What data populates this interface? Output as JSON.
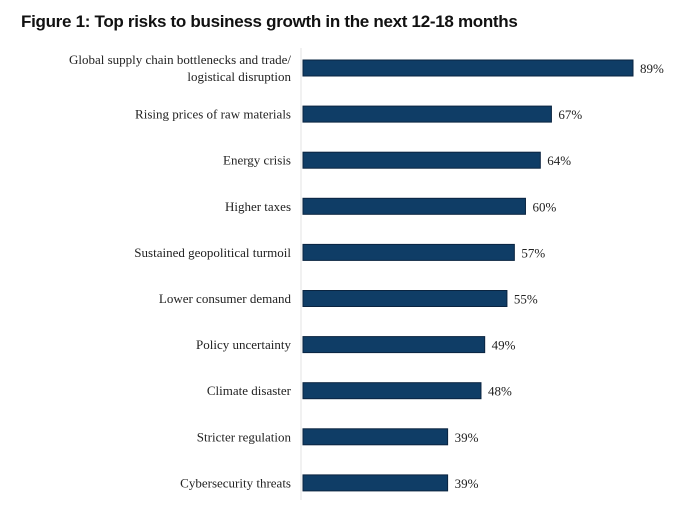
{
  "chart_data": {
    "type": "bar",
    "orientation": "horizontal",
    "title": "Figure 1: Top risks to business growth in the next 12-18 months",
    "categories": [
      [
        "Global supply chain bottlenecks and trade/",
        "logistical disruption"
      ],
      [
        "Rising prices of raw materials"
      ],
      [
        "Energy crisis"
      ],
      [
        "Higher taxes"
      ],
      [
        "Sustained geopolitical turmoil"
      ],
      [
        "Lower consumer demand"
      ],
      [
        "Policy uncertainty"
      ],
      [
        "Climate disaster"
      ],
      [
        "Stricter regulation"
      ],
      [
        "Cybersecurity threats"
      ]
    ],
    "values": [
      89,
      67,
      64,
      60,
      57,
      55,
      49,
      48,
      39,
      39
    ],
    "value_labels": [
      "89%",
      "67%",
      "64%",
      "60%",
      "57%",
      "55%",
      "49%",
      "48%",
      "39%",
      "39%"
    ],
    "xlabel": "",
    "ylabel": "",
    "xlim": [
      0,
      100
    ],
    "grid": false,
    "bar_color": "#0f3d66"
  }
}
